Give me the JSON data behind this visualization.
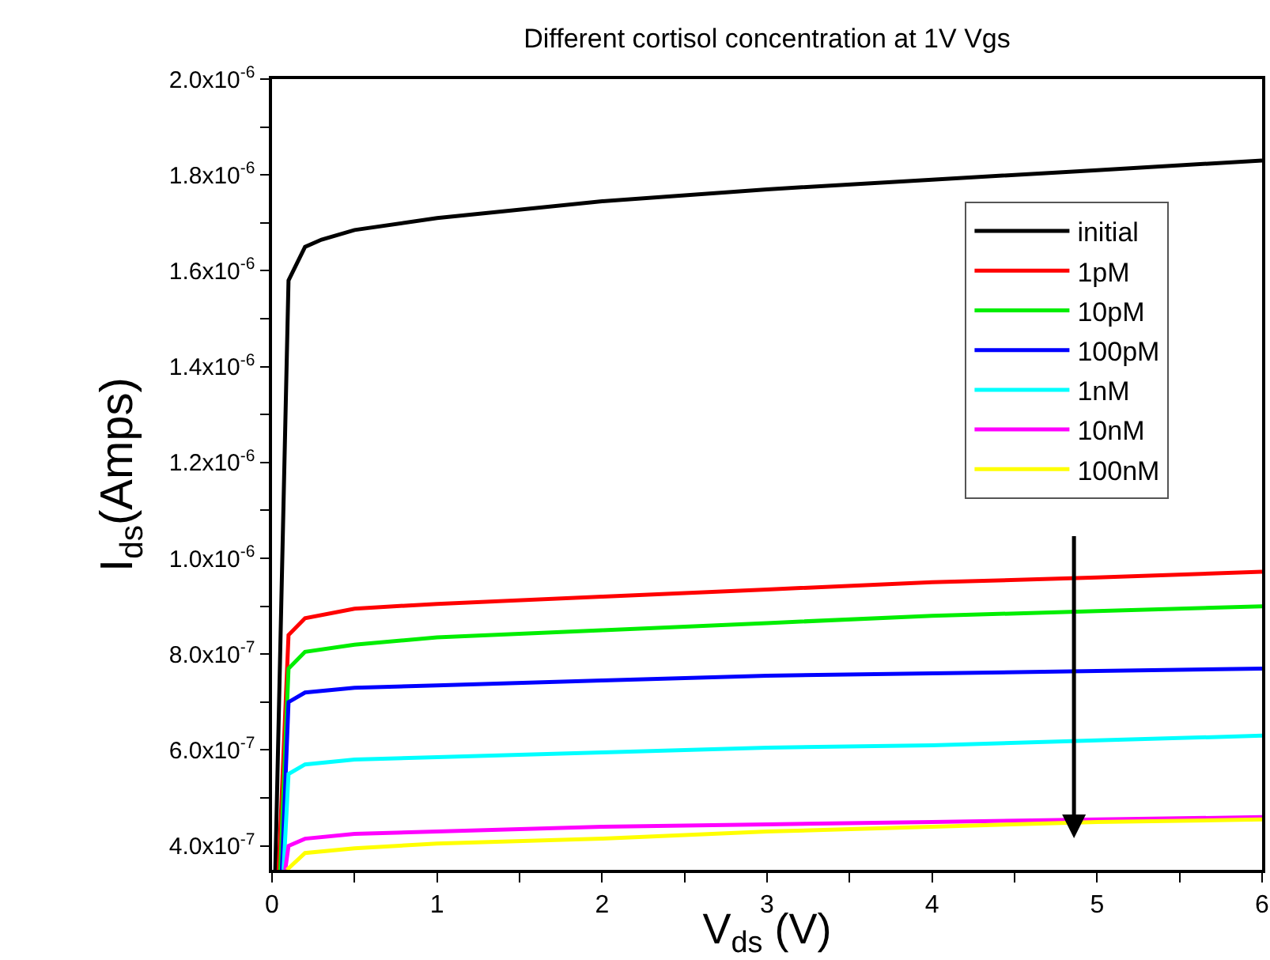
{
  "chart_data": {
    "type": "line",
    "title": "Different cortisol concentration at 1V Vgs",
    "xlabel": "V$_{ds}$ (V)",
    "ylabel": "I$_{ds}$(Amps)",
    "xlim": [
      0,
      6
    ],
    "xticks": [
      0,
      {
        "value": 0.5,
        "label": null
      },
      1,
      {
        "value": 1.5,
        "label": null
      },
      2,
      {
        "value": 2.5,
        "label": null
      },
      3,
      {
        "value": 3.5,
        "label": null
      },
      4,
      {
        "value": 4.5,
        "label": null
      },
      5,
      {
        "value": 5.5,
        "label": null
      },
      6
    ],
    "ylim": [
      3.5e-07,
      2e-06
    ],
    "yticks": [
      {
        "value": 4e-07,
        "label": "4.0x10$^{-7}$"
      },
      {
        "value": 5e-07,
        "label": null
      },
      {
        "value": 6e-07,
        "label": "6.0x10$^{-7}$"
      },
      {
        "value": 7e-07,
        "label": null
      },
      {
        "value": 8e-07,
        "label": "8.0x10$^{-7}$"
      },
      {
        "value": 9e-07,
        "label": null
      },
      {
        "value": 1e-06,
        "label": "1.0x10$^{-6}$"
      },
      {
        "value": 1.1e-06,
        "label": null
      },
      {
        "value": 1.2e-06,
        "label": "1.2x10$^{-6}$"
      },
      {
        "value": 1.3e-06,
        "label": null
      },
      {
        "value": 1.4e-06,
        "label": "1.4x10$^{-6}$"
      },
      {
        "value": 1.5e-06,
        "label": null
      },
      {
        "value": 1.6e-06,
        "label": "1.6x10$^{-6}$"
      },
      {
        "value": 1.7e-06,
        "label": null
      },
      {
        "value": 1.8e-06,
        "label": "1.8x10$^{-6}$"
      },
      {
        "value": 1.9e-06,
        "label": null
      },
      {
        "value": 2e-06,
        "label": "2.0x10$^{-6}$"
      }
    ],
    "grid": false,
    "legend": "top right",
    "marker": "none",
    "line_style": "solid",
    "series": [
      {
        "name": "initial",
        "color": "#000000",
        "x": [
          0.02,
          0.1,
          0.2,
          0.3,
          0.5,
          1,
          2,
          3,
          4,
          5,
          6
        ],
        "values": [
          3.5e-07,
          1.58e-06,
          1.65e-06,
          1.665e-06,
          1.685e-06,
          1.71e-06,
          1.745e-06,
          1.77e-06,
          1.79e-06,
          1.81e-06,
          1.83e-06
        ]
      },
      {
        "name": "1pM",
        "color": "#ff0000",
        "x": [
          0.04,
          0.1,
          0.2,
          0.5,
          1,
          2,
          3,
          4,
          5,
          6
        ],
        "values": [
          3.5e-07,
          8.4e-07,
          8.75e-07,
          8.95e-07,
          9.05e-07,
          9.2e-07,
          9.35e-07,
          9.5e-07,
          9.6e-07,
          9.72e-07
        ]
      },
      {
        "name": "10pM",
        "color": "#00ee00",
        "x": [
          0.05,
          0.1,
          0.2,
          0.5,
          1,
          2,
          3,
          4,
          5,
          6
        ],
        "values": [
          3.5e-07,
          7.7e-07,
          8.05e-07,
          8.2e-07,
          8.35e-07,
          8.5e-07,
          8.65e-07,
          8.8e-07,
          8.9e-07,
          9e-07
        ]
      },
      {
        "name": "100pM",
        "color": "#0000ff",
        "x": [
          0.06,
          0.1,
          0.2,
          0.5,
          1,
          2,
          3,
          4,
          5,
          6
        ],
        "values": [
          3.5e-07,
          7e-07,
          7.2e-07,
          7.3e-07,
          7.35e-07,
          7.45e-07,
          7.55e-07,
          7.6e-07,
          7.65e-07,
          7.7e-07
        ]
      },
      {
        "name": "1nM",
        "color": "#00ffff",
        "x": [
          0.07,
          0.1,
          0.2,
          0.5,
          1,
          2,
          3,
          4,
          5,
          6
        ],
        "values": [
          3.5e-07,
          5.5e-07,
          5.7e-07,
          5.8e-07,
          5.85e-07,
          5.95e-07,
          6.05e-07,
          6.1e-07,
          6.2e-07,
          6.3e-07
        ]
      },
      {
        "name": "10nM",
        "color": "#ff00ff",
        "x": [
          0.08,
          0.1,
          0.2,
          0.5,
          1,
          2,
          3,
          4,
          5,
          6
        ],
        "values": [
          3.5e-07,
          4e-07,
          4.15e-07,
          4.25e-07,
          4.3e-07,
          4.4e-07,
          4.45e-07,
          4.5e-07,
          4.55e-07,
          4.6e-07
        ]
      },
      {
        "name": "100nM",
        "color": "#ffff00",
        "x": [
          0.09,
          0.2,
          0.5,
          1,
          2,
          3,
          4,
          5,
          6
        ],
        "values": [
          3.5e-07,
          3.85e-07,
          3.95e-07,
          4.05e-07,
          4.15e-07,
          4.3e-07,
          4.4e-07,
          4.5e-07,
          4.55e-07
        ]
      }
    ]
  }
}
